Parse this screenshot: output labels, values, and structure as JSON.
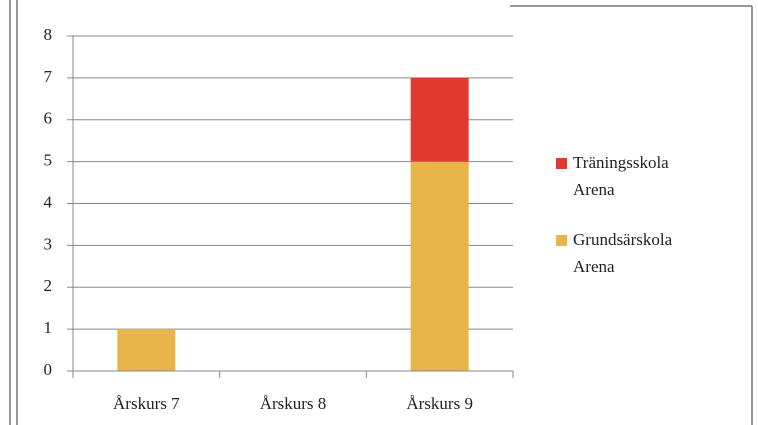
{
  "chart_data": {
    "type": "bar",
    "stacked": true,
    "categories": [
      "Årskurs 7",
      "Årskurs 8",
      "Årskurs 9"
    ],
    "series": [
      {
        "name": "Grundsärskola Arena",
        "color": "#e8b54a",
        "values": [
          1,
          0,
          5
        ]
      },
      {
        "name": "Träningsskola Arena",
        "color": "#e03a30",
        "values": [
          0,
          0,
          2
        ]
      }
    ],
    "ylim": [
      0,
      8
    ],
    "yticks": [
      0,
      1,
      2,
      3,
      4,
      5,
      6,
      7,
      8
    ],
    "grid": true,
    "legend": "right"
  }
}
